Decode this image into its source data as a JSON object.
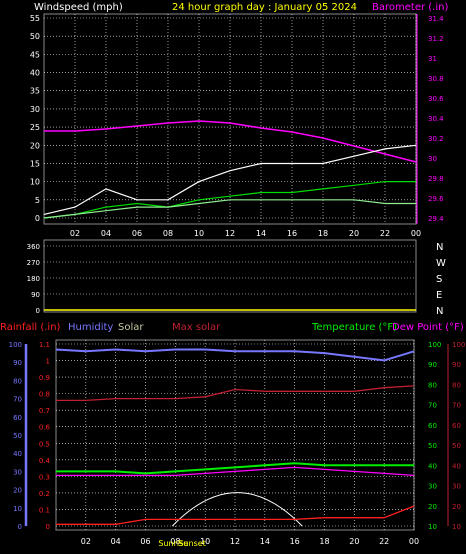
{
  "header": {
    "windspeed_label": "Windspeed (mph)",
    "title": "24 hour graph day : January 05 2024",
    "barometer_label": "Barometer (.in)"
  },
  "colors": {
    "background": "#000000",
    "grid": "#ffffff",
    "wind": "#ffffff",
    "gust": "#90ee90",
    "wind_avg": "#00dd00",
    "barometer": "#ff00ff",
    "axis_yellow": "#ffff00",
    "rainfall": "#ff2020",
    "humidity": "#7777ff",
    "solar": "#c8c8a0",
    "max_solar": "#c02030",
    "temperature": "#00ee00",
    "dewpoint": "#ff00ff",
    "sun_curve": "#ffffff",
    "uv": "#4422ee"
  },
  "x_ticks": [
    "02",
    "04",
    "06",
    "08",
    "10",
    "12",
    "14",
    "16",
    "18",
    "20",
    "22",
    "00"
  ],
  "chart_data": [
    {
      "type": "line",
      "name": "wind-barometer",
      "x_hours": [
        0,
        2,
        4,
        6,
        8,
        10,
        12,
        14,
        16,
        18,
        20,
        22,
        24
      ],
      "left_axis": {
        "label": "Windspeed (mph)",
        "ylim": [
          0,
          55
        ],
        "ticks": [
          "0",
          "5",
          "10",
          "15",
          "20",
          "25",
          "30",
          "35",
          "40",
          "45",
          "50",
          "55"
        ]
      },
      "right_axis": {
        "label": "Barometer (.in)",
        "ylim": [
          29.4,
          31.4
        ],
        "ticks": [
          "29.4",
          "29.6",
          "29.8",
          "30",
          "30.2",
          "30.4",
          "30.6",
          "30.8",
          "31",
          "31.2",
          "31.4"
        ]
      },
      "series": [
        {
          "name": "barometer",
          "axis": "right",
          "values": [
            30.27,
            30.27,
            30.29,
            30.32,
            30.35,
            30.37,
            30.35,
            30.3,
            30.26,
            30.2,
            30.12,
            30.04,
            29.96
          ]
        },
        {
          "name": "wind gust",
          "axis": "left",
          "values": [
            1,
            3,
            8,
            5,
            5,
            10,
            13,
            15,
            15,
            15,
            17,
            19,
            20
          ]
        },
        {
          "name": "wind avg",
          "axis": "left",
          "values": [
            0,
            1,
            3,
            4,
            3,
            5,
            6,
            7,
            7,
            8,
            9,
            10,
            10
          ]
        },
        {
          "name": "wind speed",
          "axis": "left",
          "values": [
            0,
            1,
            2,
            3,
            3,
            4,
            5,
            5,
            5,
            5,
            5,
            4,
            4
          ]
        }
      ],
      "grid": true
    },
    {
      "type": "scatter",
      "name": "wind-direction",
      "ylabels_left": [
        "0",
        "90",
        "180",
        "270",
        "360"
      ],
      "ylabels_right": [
        "N",
        "E",
        "S",
        "W",
        "N"
      ],
      "ylim": [
        0,
        360
      ],
      "values": []
    },
    {
      "type": "line",
      "name": "temp-humidity-rain",
      "legend": [
        "Rainfall (.in)",
        "Humidity",
        "Solar",
        "Max solar",
        "Temperature (°F)",
        "Dew Point (°F)"
      ],
      "x_hours": [
        0,
        2,
        4,
        6,
        8,
        10,
        12,
        14,
        16,
        18,
        20,
        22,
        24
      ],
      "humidity_axis": {
        "ylim": [
          0,
          100
        ],
        "ticks": [
          "0",
          "10",
          "20",
          "30",
          "40",
          "50",
          "60",
          "70",
          "80",
          "90",
          "100"
        ]
      },
      "rain_axis": {
        "ylim": [
          0,
          1.1
        ],
        "ticks": [
          "0",
          "0.1",
          "0.2",
          "0.3",
          "0.4",
          "0.5",
          "0.6",
          "0.7",
          "0.8",
          "0.9",
          "1",
          "1.1"
        ]
      },
      "temp_axis": {
        "ylim": [
          10,
          100
        ],
        "ticks": [
          "10",
          "20",
          "30",
          "40",
          "50",
          "60",
          "70",
          "80",
          "90",
          "100"
        ]
      },
      "dew_axis": {
        "ylim": [
          10,
          100
        ],
        "ticks": [
          "10",
          "20",
          "30",
          "40",
          "50",
          "60",
          "70",
          "80",
          "90",
          "100"
        ]
      },
      "series": [
        {
          "name": "Humidity",
          "axis": "humidity",
          "values": [
            97,
            96,
            97,
            96,
            97,
            97,
            96,
            96,
            96,
            95,
            93,
            91,
            96
          ]
        },
        {
          "name": "Max solar",
          "axis": "humidity",
          "values": [
            69,
            69,
            70,
            70,
            70,
            71,
            75,
            74,
            74,
            74,
            74,
            76,
            77
          ]
        },
        {
          "name": "Temperature",
          "axis": "temp",
          "values": [
            37,
            37,
            37,
            36,
            37,
            38,
            39,
            40,
            41,
            40,
            40,
            40,
            40
          ]
        },
        {
          "name": "Dew Point",
          "axis": "temp",
          "values": [
            35,
            35,
            35,
            35,
            35,
            36,
            37,
            38,
            39,
            38,
            37,
            36,
            35
          ]
        },
        {
          "name": "Rainfall",
          "axis": "rain",
          "values": [
            0.01,
            0.01,
            0.01,
            0.04,
            0.04,
            0.04,
            0.04,
            0.04,
            0.04,
            0.05,
            0.05,
            0.05,
            0.12
          ]
        }
      ],
      "sun_markers": [
        "Sunrise",
        "Sunset"
      ],
      "grid": true
    }
  ]
}
